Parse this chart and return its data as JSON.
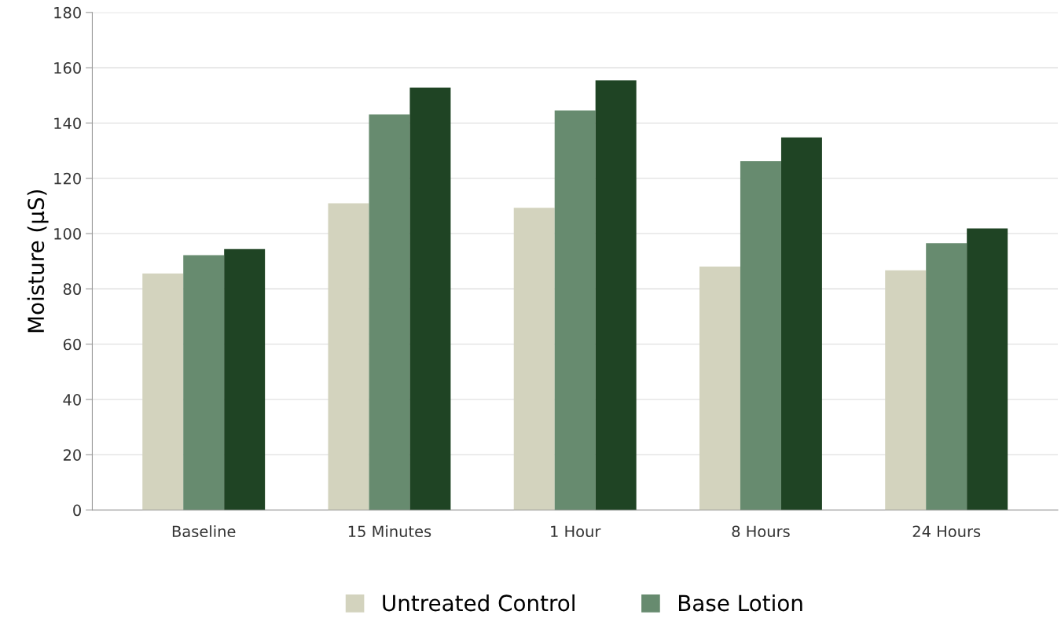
{
  "chart_data": {
    "type": "bar",
    "ylabel": "Moisture (µS)",
    "categories": [
      "Baseline",
      "15 Minutes",
      "1 Hour",
      "8 Hours",
      "24 Hours"
    ],
    "series": [
      {
        "name": "Untreated Control",
        "color": "#d3d3be",
        "values": [
          85.6,
          111,
          109.3,
          88.1,
          86.7
        ]
      },
      {
        "name": "Base Lotion",
        "color": "#678b6f",
        "values": [
          92.2,
          143.1,
          144.5,
          126.2,
          96.5
        ]
      },
      {
        "color": "#1f4424",
        "values": [
          94.4,
          152.8,
          155.4,
          134.8,
          101.9
        ]
      }
    ],
    "ylim": [
      0,
      180
    ],
    "yticks": [
      0,
      20,
      40,
      60,
      80,
      100,
      120,
      140,
      160,
      180
    ],
    "grid": "y",
    "legend": "bottom"
  }
}
